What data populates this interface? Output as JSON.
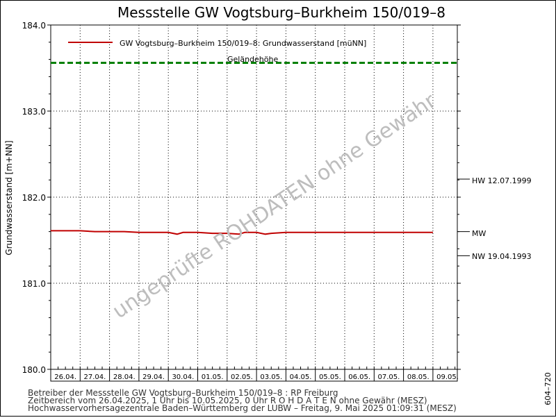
{
  "chart_data": {
    "type": "line",
    "title": "Messstelle GW Vogtsburg–Burkheim 150/019–8",
    "ylabel": "Grundwasserstand [m+NN]",
    "ylim": [
      180.0,
      184.0
    ],
    "yticks": [
      "180.0",
      "181.0",
      "182.0",
      "183.0",
      "184.0"
    ],
    "x_tick_labels": [
      "26.04.",
      "27.04.",
      "28.04.",
      "29.04.",
      "30.04.",
      "01.05.",
      "02.05.",
      "03.05.",
      "04.05.",
      "05.05.",
      "06.05.",
      "07.05.",
      "08.05.",
      "09.05."
    ],
    "x_range_days": [
      0,
      14
    ],
    "grid": true,
    "series": [
      {
        "name": "GW Vogtsburg–Burkheim 150/019–8: Grundwasserstand  [müNN]",
        "color": "#c00000",
        "x_days": [
          0,
          0.5,
          1,
          1.5,
          2,
          2.5,
          3,
          3.5,
          4,
          4.3,
          4.5,
          5,
          5.5,
          6,
          6.4,
          6.6,
          7,
          7.3,
          7.5,
          8,
          8.5,
          9,
          9.5,
          10,
          10.5,
          11,
          11.5,
          12,
          12.5,
          13.0
        ],
        "values": [
          181.61,
          181.61,
          181.61,
          181.6,
          181.6,
          181.6,
          181.59,
          181.59,
          181.59,
          181.57,
          181.59,
          181.59,
          181.58,
          181.58,
          181.57,
          181.59,
          181.59,
          181.57,
          181.58,
          181.59,
          181.59,
          181.59,
          181.59,
          181.59,
          181.59,
          181.59,
          181.59,
          181.59,
          181.59,
          181.59
        ]
      }
    ],
    "reference_lines": [
      {
        "label": "Geländehöhe",
        "value": 183.56,
        "color": "#008000",
        "style": "dashed"
      }
    ],
    "markers": [
      {
        "label": "HW 12.07.1999",
        "value": 182.21
      },
      {
        "label": "MW",
        "value": 181.6
      },
      {
        "label": "NW 19.04.1993",
        "value": 181.32
      }
    ],
    "watermark": "ungeprüfte ROHDATEN ohne Gewähr",
    "side_code": "604–720",
    "footer": [
      "Betreiber der Messstelle GW Vogtsburg–Burkheim 150/019–8 : RP Freiburg",
      "Zeitbereich vom 26.04.2025, 1 Uhr bis 10.05.2025, 0 Uhr     R O H D A T E N  ohne Gewähr (MESZ)",
      "Hochwasservorhersagezentrale Baden–Württemberg der LUBW – Freitag, 9. Mai 2025 01:09:31 (MESZ)"
    ]
  }
}
